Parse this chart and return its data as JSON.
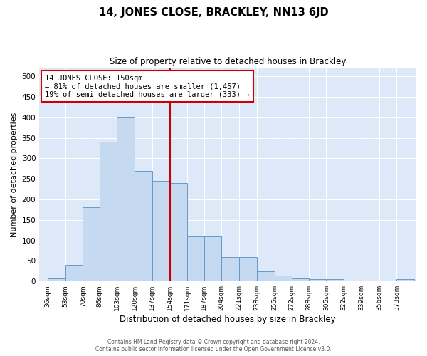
{
  "title": "14, JONES CLOSE, BRACKLEY, NN13 6JD",
  "subtitle": "Size of property relative to detached houses in Brackley",
  "xlabel": "Distribution of detached houses by size in Brackley",
  "ylabel": "Number of detached properties",
  "footer_line1": "Contains HM Land Registry data © Crown copyright and database right 2024.",
  "footer_line2": "Contains public sector information licensed under the Open Government Licence v3.0.",
  "bins": [
    "36sqm",
    "53sqm",
    "70sqm",
    "86sqm",
    "103sqm",
    "120sqm",
    "137sqm",
    "154sqm",
    "171sqm",
    "187sqm",
    "204sqm",
    "221sqm",
    "238sqm",
    "255sqm",
    "272sqm",
    "288sqm",
    "305sqm",
    "322sqm",
    "339sqm",
    "356sqm",
    "373sqm"
  ],
  "bin_edges": [
    36,
    53,
    70,
    86,
    103,
    120,
    137,
    154,
    171,
    187,
    204,
    221,
    238,
    255,
    272,
    288,
    305,
    322,
    339,
    356,
    373
  ],
  "bar_heights": [
    8,
    40,
    180,
    340,
    400,
    270,
    245,
    240,
    110,
    110,
    60,
    60,
    25,
    15,
    8,
    5,
    5,
    0,
    0,
    0,
    5
  ],
  "bar_color": "#c5d9f0",
  "bar_edge_color": "#6699cc",
  "bg_color": "#dde8f8",
  "grid_color": "#ffffff",
  "vline_x": 154,
  "vline_color": "#cc0000",
  "annotation_text": "14 JONES CLOSE: 150sqm\n← 81% of detached houses are smaller (1,457)\n19% of semi-detached houses are larger (333) →",
  "annotation_box_color": "#cc0000",
  "ylim": [
    0,
    520
  ],
  "yticks": [
    0,
    50,
    100,
    150,
    200,
    250,
    300,
    350,
    400,
    450,
    500
  ]
}
